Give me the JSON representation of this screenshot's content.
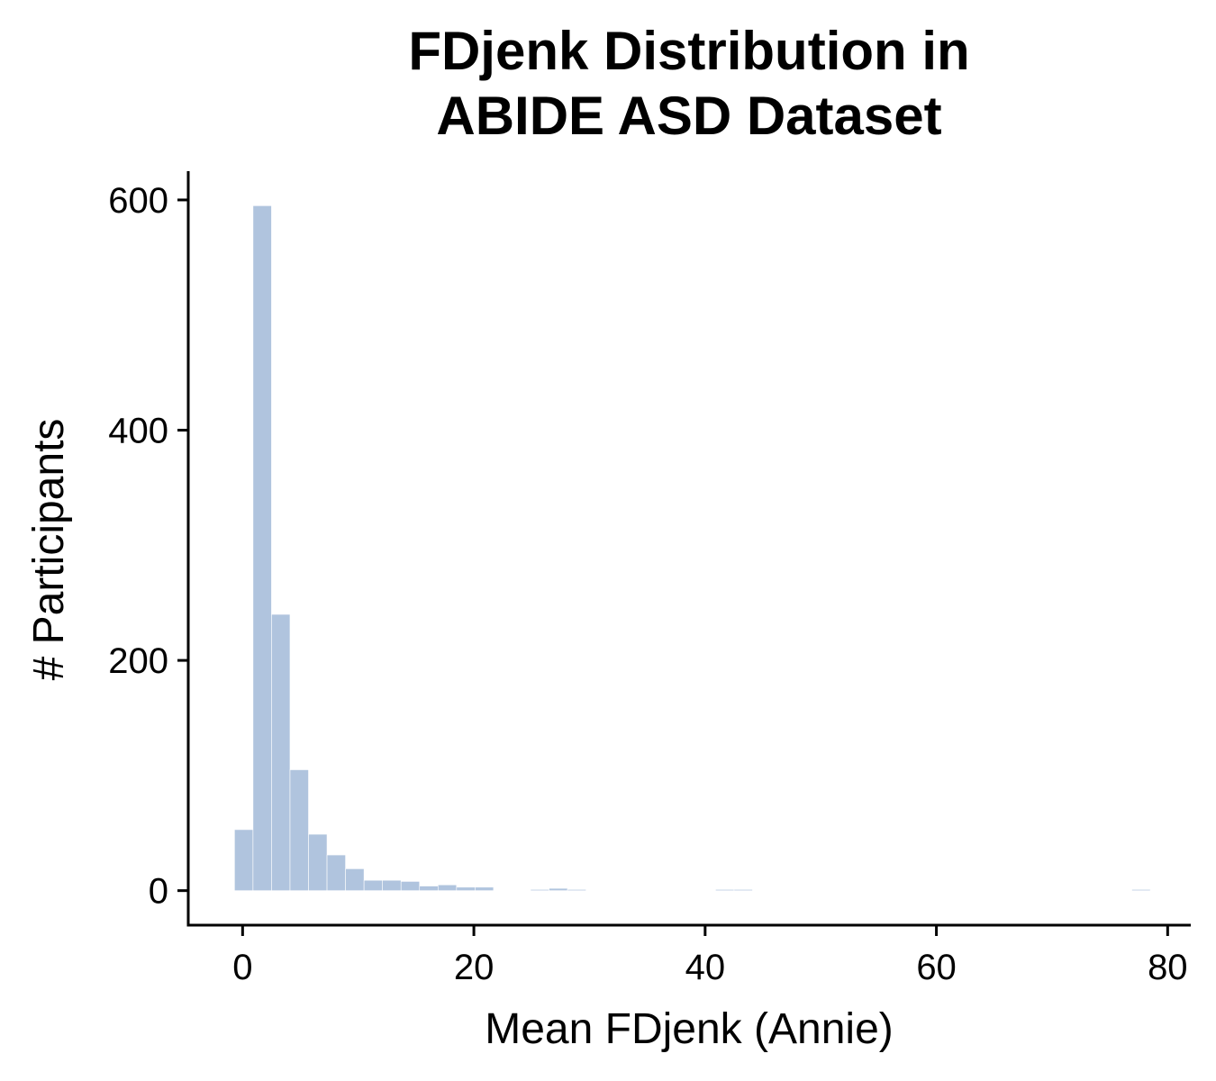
{
  "chart_data": {
    "type": "bar",
    "title_lines": [
      "FDjenk Distribution in",
      "ABIDE ASD Dataset"
    ],
    "xlabel": "Mean FDjenk (Annie)",
    "ylabel": "# Participants",
    "xlim": [
      -4.7,
      82
    ],
    "ylim": [
      -30,
      625
    ],
    "x_ticks": [
      0,
      20,
      40,
      60,
      80
    ],
    "y_ticks": [
      0,
      200,
      400,
      600
    ],
    "bar_color": "#b0c4de",
    "grid": false,
    "bins": [
      {
        "x0": -0.7,
        "x1": 0.9,
        "count": 53
      },
      {
        "x0": 0.9,
        "x1": 2.5,
        "count": 595
      },
      {
        "x0": 2.5,
        "x1": 4.1,
        "count": 240
      },
      {
        "x0": 4.1,
        "x1": 5.7,
        "count": 105
      },
      {
        "x0": 5.7,
        "x1": 7.3,
        "count": 49
      },
      {
        "x0": 7.3,
        "x1": 8.9,
        "count": 31
      },
      {
        "x0": 8.9,
        "x1": 10.5,
        "count": 19
      },
      {
        "x0": 10.5,
        "x1": 12.1,
        "count": 9
      },
      {
        "x0": 12.1,
        "x1": 13.7,
        "count": 9
      },
      {
        "x0": 13.7,
        "x1": 15.3,
        "count": 8
      },
      {
        "x0": 15.3,
        "x1": 16.9,
        "count": 4
      },
      {
        "x0": 16.9,
        "x1": 18.5,
        "count": 5
      },
      {
        "x0": 18.5,
        "x1": 20.1,
        "count": 3
      },
      {
        "x0": 20.1,
        "x1": 21.7,
        "count": 3
      },
      {
        "x0": 24.9,
        "x1": 26.5,
        "count": 1
      },
      {
        "x0": 26.5,
        "x1": 28.1,
        "count": 2
      },
      {
        "x0": 28.1,
        "x1": 29.7,
        "count": 1
      },
      {
        "x0": 40.9,
        "x1": 42.5,
        "count": 1
      },
      {
        "x0": 42.5,
        "x1": 44.1,
        "count": 1
      },
      {
        "x0": 76.9,
        "x1": 78.5,
        "count": 1
      }
    ]
  }
}
